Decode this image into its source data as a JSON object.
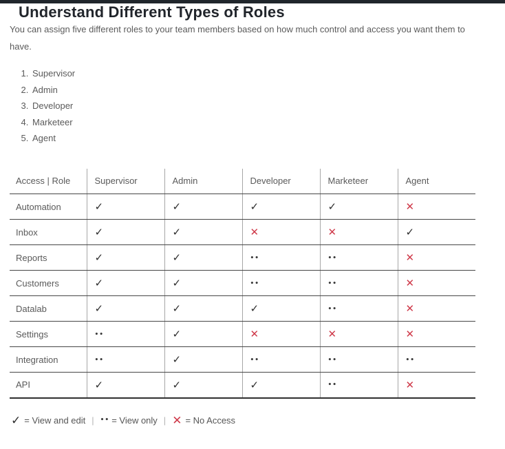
{
  "page": {
    "title": "Understand Different Types of Roles",
    "intro": "You can assign five different roles to your team members based on how much control and access you want them to have."
  },
  "roles_list": {
    "items": [
      "Supervisor",
      "Admin",
      "Developer",
      "Marketeer",
      "Agent"
    ]
  },
  "access_table": {
    "headers": [
      "Access | Role",
      "Supervisor",
      "Admin",
      "Developer",
      "Marketeer",
      "Agent"
    ],
    "rows": [
      {
        "feature": "Automation",
        "access": [
          "check",
          "check",
          "check",
          "check",
          "cross"
        ]
      },
      {
        "feature": "Inbox",
        "access": [
          "check",
          "check",
          "cross",
          "cross",
          "check"
        ]
      },
      {
        "feature": "Reports",
        "access": [
          "check",
          "check",
          "dots",
          "dots",
          "cross"
        ]
      },
      {
        "feature": "Customers",
        "access": [
          "check",
          "check",
          "dots",
          "dots",
          "cross"
        ]
      },
      {
        "feature": "Datalab",
        "access": [
          "check",
          "check",
          "check",
          "dots",
          "cross"
        ]
      },
      {
        "feature": "Settings",
        "access": [
          "dots",
          "check",
          "cross",
          "cross",
          "cross"
        ]
      },
      {
        "feature": "Integration",
        "access": [
          "dots",
          "check",
          "dots",
          "dots",
          "dots"
        ]
      },
      {
        "feature": "API",
        "access": [
          "check",
          "check",
          "check",
          "dots",
          "cross"
        ]
      }
    ]
  },
  "symbols": {
    "check": {
      "glyph": "✓",
      "name": "check-icon",
      "color": "#2e2e2e"
    },
    "dots": {
      "glyph": "••",
      "name": "view-only-dots-icon",
      "color": "#3a3a3a"
    },
    "cross": {
      "glyph": "✕",
      "name": "cross-icon",
      "color": "#cf3a4a"
    }
  },
  "legend": {
    "separator": "|",
    "entries": [
      {
        "symbol": "check",
        "label": "= View and edit"
      },
      {
        "symbol": "dots",
        "label": "= View only"
      },
      {
        "symbol": "cross",
        "label": "= No Access"
      }
    ]
  },
  "colors": {
    "top_bar": "#20262c",
    "title_text": "#21252b",
    "body_text": "#5a5a5a",
    "check_dark": "#2e2e2e",
    "cross_red": "#cf3a4a",
    "row_border": "#454545",
    "column_border": "#a6a6a6"
  }
}
